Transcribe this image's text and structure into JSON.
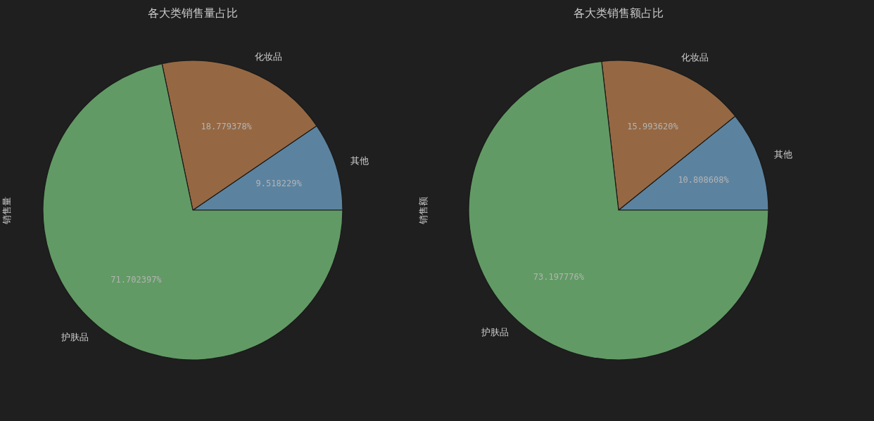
{
  "chart_data": [
    {
      "type": "pie",
      "title": "各大类销售量占比",
      "ylabel": "销售量",
      "categories": [
        "其他",
        "化妆品",
        "护肤品"
      ],
      "values": [
        9.518229,
        18.779378,
        71.702397
      ],
      "colors": [
        "#5b83a0",
        "#956843",
        "#629a65"
      ],
      "value_labels": [
        "9.518229%",
        "18.779378%",
        "71.702397%"
      ]
    },
    {
      "type": "pie",
      "title": "各大类销售额占比",
      "ylabel": "销售额",
      "categories": [
        "其他",
        "化妆品",
        "护肤品"
      ],
      "values": [
        10.808608,
        15.99362,
        73.197776
      ],
      "colors": [
        "#5b83a0",
        "#956843",
        "#629a65"
      ],
      "value_labels": [
        "10.808608%",
        "15.993620%",
        "73.197776%"
      ]
    }
  ]
}
